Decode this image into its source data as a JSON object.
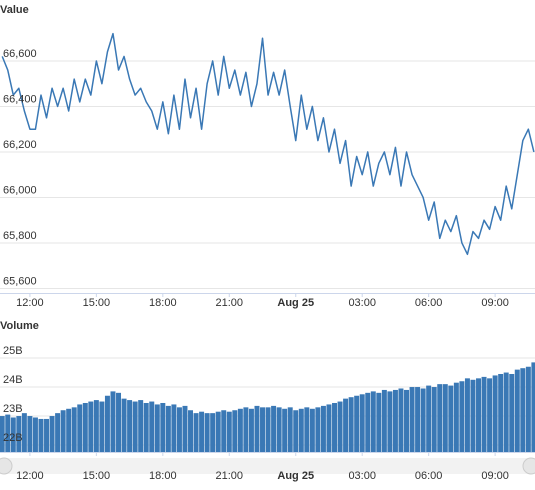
{
  "chart_data": [
    {
      "type": "line",
      "title": "Value",
      "color": "#3a78b5",
      "grid": true,
      "xlim": [
        10.65,
        34.8
      ],
      "xticks": [
        {
          "value": 12,
          "label": "12:00"
        },
        {
          "value": 15,
          "label": "15:00"
        },
        {
          "value": 18,
          "label": "18:00"
        },
        {
          "value": 21,
          "label": "21:00"
        },
        {
          "value": 24,
          "label": "Aug 25"
        },
        {
          "value": 27,
          "label": "03:00"
        },
        {
          "value": 30,
          "label": "06:00"
        },
        {
          "value": 33,
          "label": "09:00"
        }
      ],
      "ylim": [
        65580,
        66780
      ],
      "yticks": [
        {
          "value": 65600,
          "label": "65,600"
        },
        {
          "value": 65800,
          "label": "65,800"
        },
        {
          "value": 66000,
          "label": "66,000"
        },
        {
          "value": 66200,
          "label": "66,200"
        },
        {
          "value": 66400,
          "label": "66,400"
        },
        {
          "value": 66600,
          "label": "66,600"
        }
      ],
      "x": [
        10.75,
        11,
        11.25,
        11.5,
        11.75,
        12,
        12.25,
        12.5,
        12.75,
        13,
        13.25,
        13.5,
        13.75,
        14,
        14.25,
        14.5,
        14.75,
        15,
        15.25,
        15.5,
        15.75,
        16,
        16.25,
        16.5,
        16.75,
        17,
        17.25,
        17.5,
        17.75,
        18,
        18.25,
        18.5,
        18.75,
        19,
        19.25,
        19.5,
        19.75,
        20,
        20.25,
        20.5,
        20.75,
        21,
        21.25,
        21.5,
        21.75,
        22,
        22.25,
        22.5,
        22.75,
        23,
        23.25,
        23.5,
        23.75,
        24,
        24.25,
        24.5,
        24.75,
        25,
        25.25,
        25.5,
        25.75,
        26,
        26.25,
        26.5,
        26.75,
        27,
        27.25,
        27.5,
        27.75,
        28,
        28.25,
        28.5,
        28.75,
        29,
        29.25,
        29.5,
        29.75,
        30,
        30.25,
        30.5,
        30.75,
        31,
        31.25,
        31.5,
        31.75,
        32,
        32.25,
        32.5,
        32.75,
        33,
        33.25,
        33.5,
        33.75,
        34,
        34.25,
        34.5,
        34.75
      ],
      "values": [
        66620,
        66560,
        66450,
        66480,
        66380,
        66300,
        66300,
        66450,
        66350,
        66480,
        66400,
        66480,
        66380,
        66520,
        66420,
        66520,
        66450,
        66600,
        66500,
        66640,
        66720,
        66560,
        66620,
        66520,
        66450,
        66480,
        66420,
        66380,
        66300,
        66420,
        66280,
        66450,
        66300,
        66520,
        66350,
        66480,
        66300,
        66500,
        66600,
        66450,
        66620,
        66480,
        66560,
        66450,
        66550,
        66400,
        66500,
        66700,
        66450,
        66550,
        66450,
        66560,
        66400,
        66250,
        66450,
        66300,
        66400,
        66250,
        66350,
        66200,
        66300,
        66150,
        66250,
        66050,
        66180,
        66100,
        66200,
        66050,
        66150,
        66200,
        66100,
        66220,
        66050,
        66200,
        66100,
        66050,
        66000,
        65900,
        65980,
        65820,
        65900,
        65850,
        65920,
        65800,
        65750,
        65850,
        65820,
        65900,
        65860,
        65960,
        65900,
        66050,
        65950,
        66100,
        66250,
        66300,
        66200
      ]
    },
    {
      "type": "bar",
      "title": "Volume",
      "color": "#3a78b5",
      "grid": true,
      "xlim": [
        10.65,
        34.8
      ],
      "xticks": [
        {
          "value": 12,
          "label": "12:00"
        },
        {
          "value": 15,
          "label": "15:00"
        },
        {
          "value": 18,
          "label": "18:00"
        },
        {
          "value": 21,
          "label": "21:00"
        },
        {
          "value": 24,
          "label": "Aug 25"
        },
        {
          "value": 27,
          "label": "03:00"
        },
        {
          "value": 30,
          "label": "06:00"
        },
        {
          "value": 33,
          "label": "09:00"
        }
      ],
      "ylim": [
        21.76,
        25.76
      ],
      "yticks": [
        {
          "value": 22,
          "label": "22B"
        },
        {
          "value": 23,
          "label": "23B"
        },
        {
          "value": 24,
          "label": "24B"
        },
        {
          "value": 25,
          "label": "25B"
        }
      ],
      "x": [
        10.75,
        11,
        11.25,
        11.5,
        11.75,
        12,
        12.25,
        12.5,
        12.75,
        13,
        13.25,
        13.5,
        13.75,
        14,
        14.25,
        14.5,
        14.75,
        15,
        15.25,
        15.5,
        15.75,
        16,
        16.25,
        16.5,
        16.75,
        17,
        17.25,
        17.5,
        17.75,
        18,
        18.25,
        18.5,
        18.75,
        19,
        19.25,
        19.5,
        19.75,
        20,
        20.25,
        20.5,
        20.75,
        21,
        21.25,
        21.5,
        21.75,
        22,
        22.25,
        22.5,
        22.75,
        23,
        23.25,
        23.5,
        23.75,
        24,
        24.25,
        24.5,
        24.75,
        25,
        25.25,
        25.5,
        25.75,
        26,
        26.25,
        26.5,
        26.75,
        27,
        27.25,
        27.5,
        27.75,
        28,
        28.25,
        28.5,
        28.75,
        29,
        29.25,
        29.5,
        29.75,
        30,
        30.25,
        30.5,
        30.75,
        31,
        31.25,
        31.5,
        31.75,
        32,
        32.25,
        32.5,
        32.75,
        33,
        33.25,
        33.5,
        33.75,
        34,
        34.25,
        34.5,
        34.75
      ],
      "values": [
        23.0,
        23.05,
        22.95,
        23.0,
        23.1,
        23.0,
        22.95,
        22.9,
        22.9,
        23.0,
        23.1,
        23.2,
        23.25,
        23.3,
        23.4,
        23.45,
        23.5,
        23.55,
        23.5,
        23.7,
        23.85,
        23.8,
        23.6,
        23.55,
        23.5,
        23.55,
        23.45,
        23.5,
        23.4,
        23.45,
        23.35,
        23.4,
        23.3,
        23.35,
        23.2,
        23.1,
        23.15,
        23.1,
        23.1,
        23.15,
        23.2,
        23.15,
        23.2,
        23.25,
        23.3,
        23.25,
        23.35,
        23.3,
        23.3,
        23.35,
        23.3,
        23.25,
        23.3,
        23.2,
        23.25,
        23.3,
        23.25,
        23.3,
        23.35,
        23.4,
        23.45,
        23.5,
        23.6,
        23.65,
        23.7,
        23.75,
        23.8,
        23.85,
        23.8,
        23.9,
        23.85,
        23.9,
        23.95,
        23.9,
        24.0,
        24.0,
        23.95,
        24.05,
        24.0,
        24.1,
        24.1,
        24.05,
        24.15,
        24.2,
        24.3,
        24.25,
        24.3,
        24.35,
        24.3,
        24.4,
        24.45,
        24.5,
        24.45,
        24.6,
        24.65,
        24.7,
        24.85
      ]
    }
  ]
}
